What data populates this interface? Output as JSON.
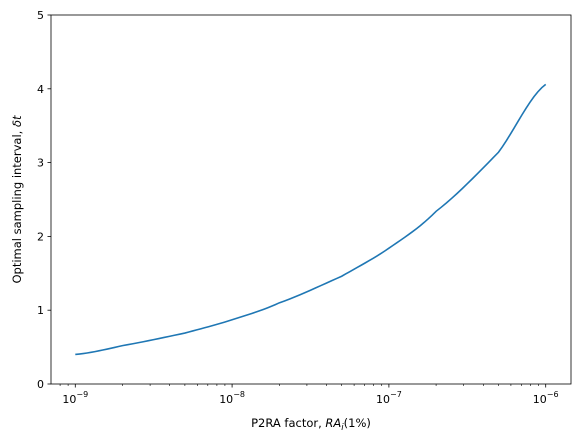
{
  "chart_data": {
    "type": "line",
    "xscale": "log",
    "xlim": [
      7e-10,
      1.45e-06
    ],
    "ylim": [
      0,
      5
    ],
    "xlabel_prefix": "P2RA factor, ",
    "xlabel_math": "RA",
    "xlabel_sub": "i",
    "xlabel_suffix": "(1%)",
    "ylabel_prefix": "Optimal sampling interval, ",
    "ylabel_math": "δt",
    "x_ticks": [
      {
        "value": 1e-09,
        "base": "10",
        "exp": "−9"
      },
      {
        "value": 1e-08,
        "base": "10",
        "exp": "−8"
      },
      {
        "value": 1e-07,
        "base": "10",
        "exp": "−7"
      },
      {
        "value": 1e-06,
        "base": "10",
        "exp": "−6"
      }
    ],
    "y_ticks": [
      0,
      1,
      2,
      3,
      4,
      5
    ],
    "grid": false,
    "series": [
      {
        "color": "#1f77b4",
        "x": [
          1e-09,
          2e-09,
          5e-09,
          1e-08,
          2e-08,
          5e-08,
          1e-07,
          2e-07,
          5e-07,
          1e-06
        ],
        "y": [
          0.4,
          0.52,
          0.69,
          0.87,
          1.1,
          1.46,
          1.84,
          2.34,
          3.14,
          4.06
        ]
      }
    ]
  }
}
